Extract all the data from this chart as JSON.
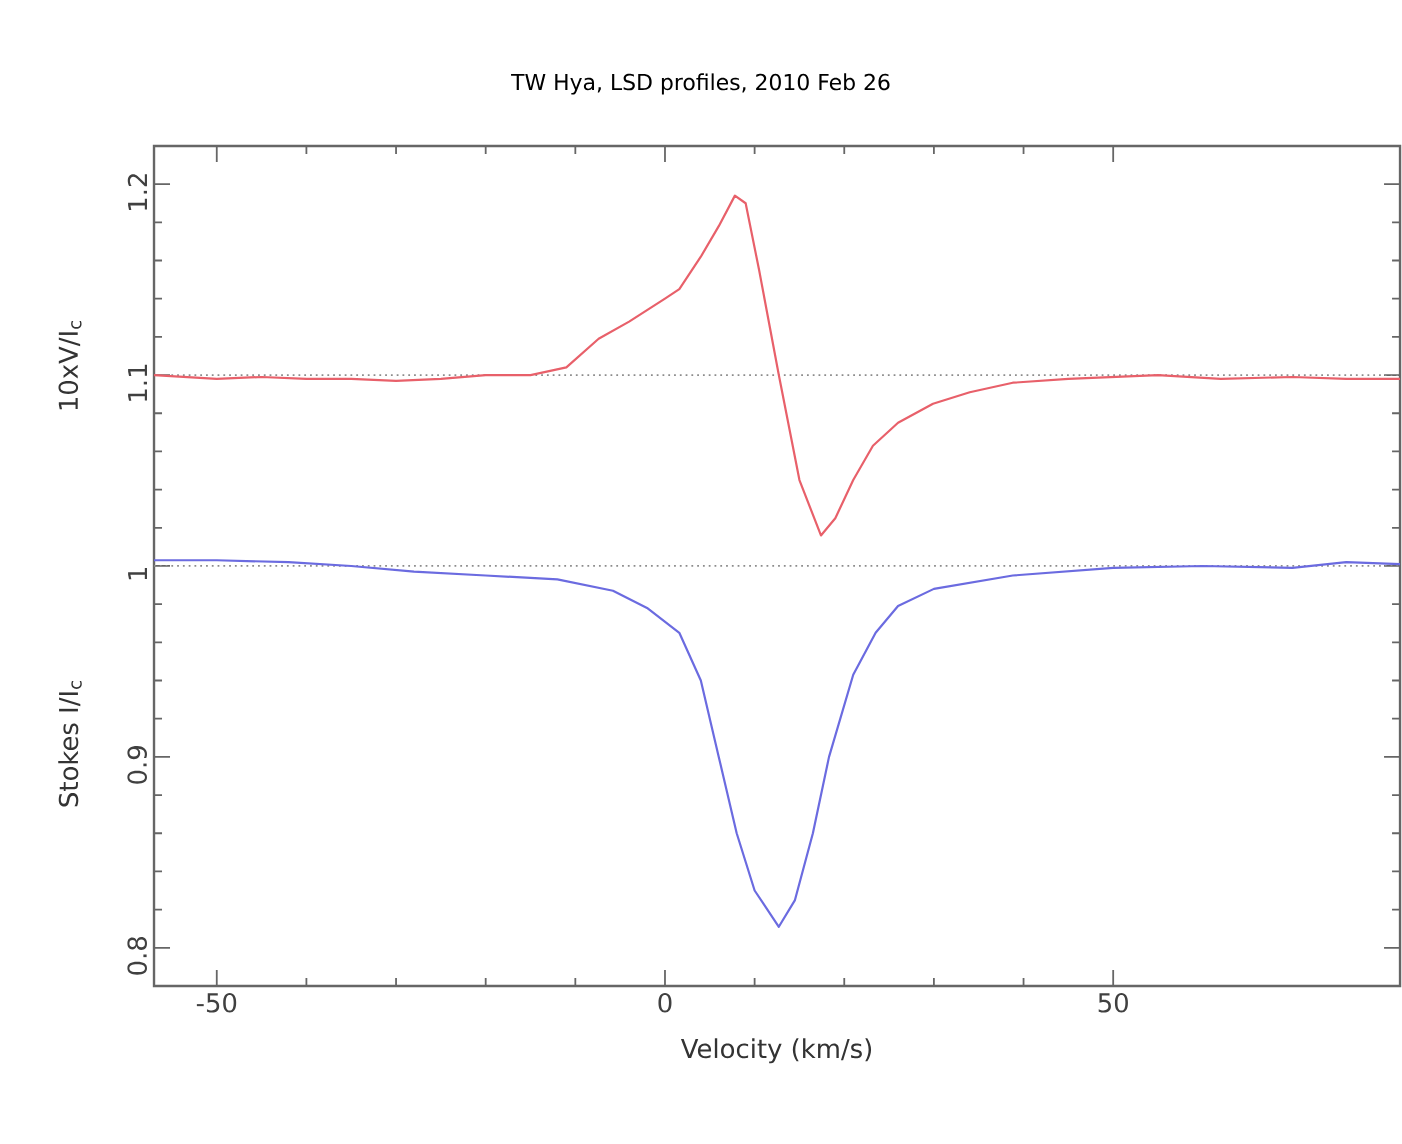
{
  "chart_data": {
    "type": "line",
    "title": "TW Hya, LSD profiles, 2010 Feb 26",
    "xlabel": "Velocity (km/s)",
    "xlim": [
      -57,
      82
    ],
    "ylim": [
      0.78,
      1.22
    ],
    "xticks": [
      -50,
      0,
      50
    ],
    "yticks": [
      0.8,
      0.9,
      1,
      1.1,
      1.2
    ],
    "ylabel": "Stokes I/I$_{c}$",
    "marker": "none",
    "line_style": "solid",
    "ref_lines": [
      {
        "axis": "y",
        "value": 1.1,
        "color": "#8c8c8c",
        "line_style": "dotted"
      },
      {
        "axis": "y",
        "value": 1.0,
        "color": "#8c8c8c",
        "line_style": "dotted"
      }
    ],
    "series": [
      {
        "name": "10xV/I$_{c}$",
        "color": "#e8606a",
        "x": [
          -57,
          -50,
          -45,
          -40,
          -35,
          -30,
          -25,
          -20,
          -15,
          -11,
          -7.4,
          -4,
          0,
          1.6,
          4,
          6,
          7.8,
          9,
          10.5,
          12.7,
          15,
          17.4,
          19,
          21,
          23.2,
          26,
          29.9,
          34,
          38.8,
          45,
          55,
          62,
          70,
          76,
          82
        ],
        "values": [
          1.1,
          1.098,
          1.099,
          1.098,
          1.098,
          1.097,
          1.098,
          1.1,
          1.1,
          1.104,
          1.119,
          1.128,
          1.14,
          1.145,
          1.162,
          1.178,
          1.194,
          1.19,
          1.155,
          1.1,
          1.045,
          1.016,
          1.025,
          1.045,
          1.063,
          1.075,
          1.085,
          1.091,
          1.096,
          1.098,
          1.1,
          1.098,
          1.099,
          1.098,
          1.098
        ]
      },
      {
        "color": "#6b6be0",
        "x": [
          -57,
          -50,
          -42,
          -35,
          -28,
          -20,
          -12,
          -5.8,
          -2,
          1.6,
          4,
          6,
          8,
          10,
          12.7,
          14.5,
          16.5,
          18.3,
          21,
          23.5,
          26,
          30,
          38.8,
          50,
          60,
          70,
          76,
          82
        ],
        "values": [
          1.003,
          1.003,
          1.002,
          1.0,
          0.997,
          0.995,
          0.993,
          0.987,
          0.978,
          0.965,
          0.94,
          0.9,
          0.86,
          0.83,
          0.811,
          0.825,
          0.86,
          0.9,
          0.943,
          0.965,
          0.979,
          0.988,
          0.995,
          0.999,
          1.0,
          0.999,
          1.002,
          1.001
        ]
      }
    ]
  }
}
